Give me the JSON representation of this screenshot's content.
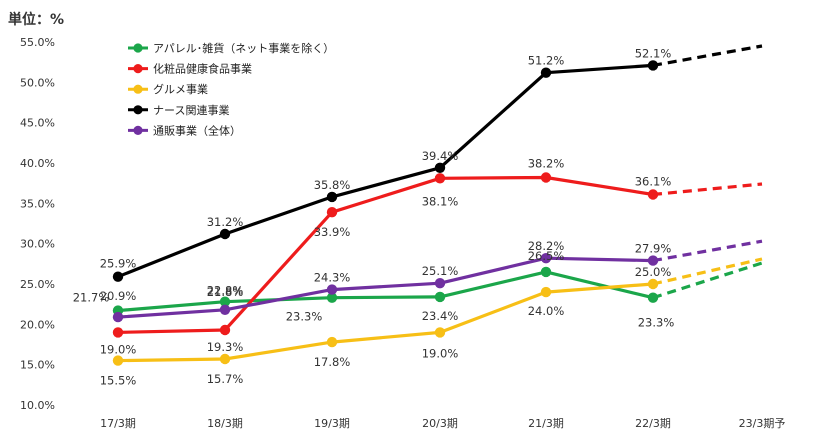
{
  "chart_data": {
    "type": "line",
    "unit_label": "単位：%",
    "categories": [
      "17/3期",
      "18/3期",
      "19/3期",
      "20/3期",
      "21/3期",
      "22/3期",
      "23/3期予"
    ],
    "ylim": [
      10,
      55
    ],
    "yticks": [
      "10.0%",
      "15.0%",
      "20.0%",
      "25.0%",
      "30.0%",
      "35.0%",
      "40.0%",
      "45.0%",
      "50.0%",
      "55.0%"
    ],
    "grid": false,
    "legend_position": "top-left",
    "forecast_style": "dashed",
    "series": [
      {
        "name": "アパレル･雑貨（ネット事業を除く）",
        "color": "#1ba64a",
        "values": [
          21.7,
          22.8,
          23.3,
          23.4,
          26.5,
          23.3,
          27.6
        ],
        "labels": [
          "21.7%",
          "22.8%",
          "23.3%",
          "23.4%",
          "26.5%",
          "23.3%",
          ""
        ]
      },
      {
        "name": "化粧品健康食品事業",
        "color": "#ee1c1c",
        "values": [
          19.0,
          19.3,
          33.9,
          38.1,
          38.2,
          36.1,
          37.4
        ],
        "labels": [
          "19.0%",
          "19.3%",
          "33.9%",
          "38.1%",
          "38.2%",
          "36.1%",
          ""
        ]
      },
      {
        "name": "グルメ事業",
        "color": "#f7bf16",
        "values": [
          15.5,
          15.7,
          17.8,
          19.0,
          24.0,
          25.0,
          28.1
        ],
        "labels": [
          "15.5%",
          "15.7%",
          "17.8%",
          "19.0%",
          "24.0%",
          "25.0%",
          ""
        ]
      },
      {
        "name": "ナース関連事業",
        "color": "#000000",
        "values": [
          25.9,
          31.2,
          35.8,
          39.4,
          51.2,
          52.1,
          54.5
        ],
        "labels": [
          "25.9%",
          "31.2%",
          "35.8%",
          "39.4%",
          "51.2%",
          "52.1%",
          ""
        ]
      },
      {
        "name": "通販事業（全体）",
        "color": "#7030a0",
        "values": [
          20.9,
          21.8,
          24.3,
          25.1,
          28.2,
          27.9,
          30.3
        ],
        "labels": [
          "20.9%",
          "21.8%",
          "24.3%",
          "25.1%",
          "28.2%",
          "27.9%",
          ""
        ]
      }
    ]
  }
}
